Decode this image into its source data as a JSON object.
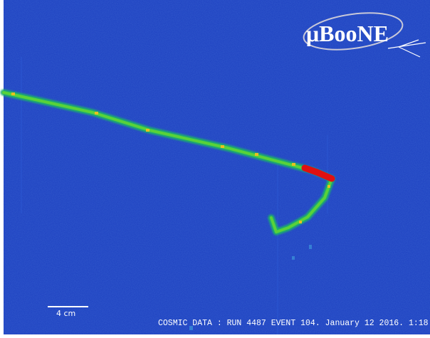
{
  "logo": "μBooNE",
  "scale_bar": "4 cm",
  "caption": "COSMIC DATA : RUN 4487 EVENT 104. January 12 2016. 1:18"
}
